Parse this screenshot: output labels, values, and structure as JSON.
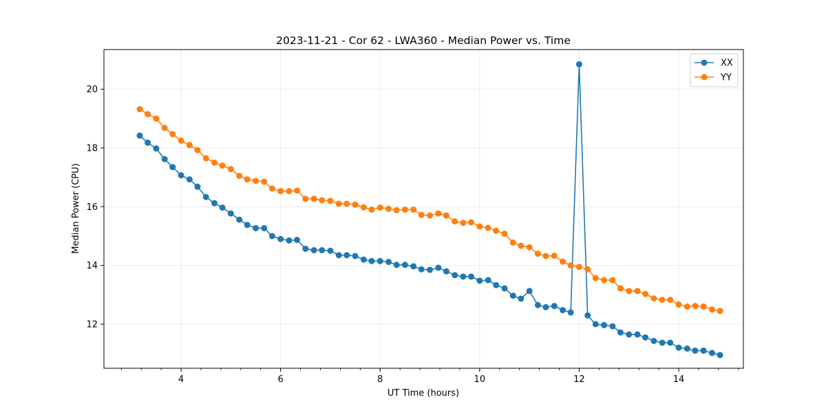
{
  "chart_data": {
    "type": "line",
    "title": "2023-11-21 - Cor 62 - LWA360 - Median Power vs. Time",
    "xlabel": "UT Time (hours)",
    "ylabel": "Median Power (CPU)",
    "xlim": [
      2.45,
      15.3
    ],
    "ylim": [
      10.5,
      21.35
    ],
    "xticks": [
      4,
      6,
      8,
      10,
      12,
      14
    ],
    "yticks": [
      12,
      14,
      16,
      18,
      20
    ],
    "xminor_step": 0.4,
    "grid": true,
    "legend_position": "top-right",
    "x": [
      3.17,
      3.33,
      3.5,
      3.67,
      3.83,
      4.0,
      4.17,
      4.33,
      4.5,
      4.67,
      4.83,
      5.0,
      5.17,
      5.33,
      5.5,
      5.67,
      5.83,
      6.0,
      6.17,
      6.33,
      6.5,
      6.67,
      6.83,
      7.0,
      7.17,
      7.33,
      7.5,
      7.67,
      7.83,
      8.0,
      8.17,
      8.33,
      8.5,
      8.67,
      8.83,
      9.0,
      9.17,
      9.33,
      9.5,
      9.67,
      9.83,
      10.0,
      10.17,
      10.33,
      10.5,
      10.67,
      10.83,
      11.0,
      11.17,
      11.33,
      11.5,
      11.67,
      11.83,
      12.0,
      12.17,
      12.33,
      12.5,
      12.67,
      12.83,
      13.0,
      13.17,
      13.33,
      13.5,
      13.67,
      13.83,
      14.0,
      14.17,
      14.33,
      14.5,
      14.67,
      14.83
    ],
    "series": [
      {
        "name": "XX",
        "color": "#1f77b4",
        "values": [
          18.42,
          18.18,
          17.98,
          17.62,
          17.35,
          17.07,
          16.93,
          16.68,
          16.33,
          16.12,
          15.97,
          15.77,
          15.56,
          15.38,
          15.27,
          15.27,
          15.0,
          14.9,
          14.85,
          14.87,
          14.57,
          14.52,
          14.52,
          14.5,
          14.35,
          14.35,
          14.32,
          14.2,
          14.15,
          14.15,
          14.12,
          14.02,
          14.02,
          13.97,
          13.87,
          13.85,
          13.92,
          13.8,
          13.67,
          13.62,
          13.62,
          13.48,
          13.5,
          13.33,
          13.22,
          12.97,
          12.87,
          13.13,
          12.65,
          12.58,
          12.62,
          12.48,
          12.4,
          20.85,
          12.3,
          12.0,
          11.97,
          11.93,
          11.72,
          11.65,
          11.65,
          11.55,
          11.43,
          11.37,
          11.37,
          11.2,
          11.17,
          11.1,
          11.1,
          11.02,
          10.95
        ]
      },
      {
        "name": "YY",
        "color": "#ff7f0e",
        "values": [
          19.32,
          19.15,
          19.0,
          18.68,
          18.47,
          18.25,
          18.1,
          17.93,
          17.65,
          17.5,
          17.4,
          17.28,
          17.05,
          16.93,
          16.88,
          16.85,
          16.62,
          16.53,
          16.53,
          16.55,
          16.27,
          16.27,
          16.22,
          16.2,
          16.1,
          16.1,
          16.07,
          15.98,
          15.9,
          15.97,
          15.93,
          15.88,
          15.9,
          15.9,
          15.72,
          15.7,
          15.77,
          15.7,
          15.5,
          15.45,
          15.47,
          15.33,
          15.28,
          15.18,
          15.08,
          14.78,
          14.67,
          14.62,
          14.4,
          14.32,
          14.33,
          14.13,
          14.0,
          13.95,
          13.87,
          13.57,
          13.5,
          13.5,
          13.22,
          13.13,
          13.13,
          13.03,
          12.88,
          12.83,
          12.83,
          12.67,
          12.6,
          12.62,
          12.6,
          12.5,
          12.45
        ]
      }
    ]
  }
}
